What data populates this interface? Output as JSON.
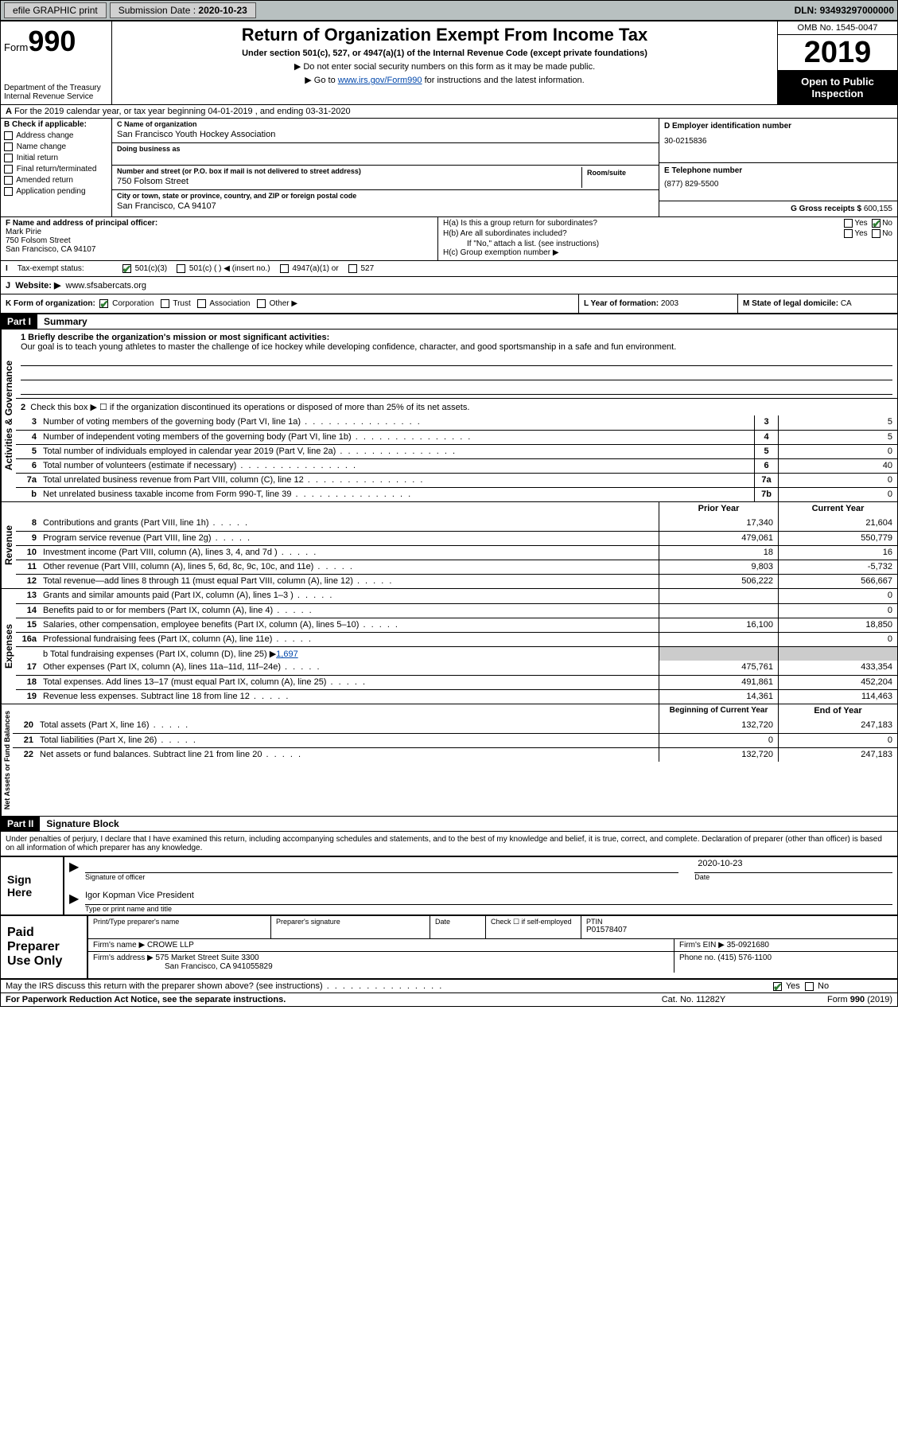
{
  "topbar": {
    "efile_label": "efile GRAPHIC print",
    "submission_label": "Submission Date : ",
    "submission_date": "2020-10-23",
    "dln_label": "DLN: ",
    "dln": "93493297000000"
  },
  "header": {
    "form_label": "Form",
    "form_number": "990",
    "dept1": "Department of the Treasury",
    "dept2": "Internal Revenue Service",
    "title": "Return of Organization Exempt From Income Tax",
    "subtitle": "Under section 501(c), 527, or 4947(a)(1) of the Internal Revenue Code (except private foundations)",
    "note1": "▶ Do not enter social security numbers on this form as it may be made public.",
    "note2_pre": "▶ Go to ",
    "note2_link": "www.irs.gov/Form990",
    "note2_post": " for instructions and the latest information.",
    "omb": "OMB No. 1545-0047",
    "year": "2019",
    "open": "Open to Public Inspection"
  },
  "line_a": "For the 2019 calendar year, or tax year beginning 04-01-2019    , and ending 03-31-2020",
  "section_b": {
    "header": "B Check if applicable:",
    "items": [
      "Address change",
      "Name change",
      "Initial return",
      "Final return/terminated",
      "Amended return",
      "Application pending"
    ]
  },
  "section_c": {
    "name_lbl": "C Name of organization",
    "name": "San Francisco Youth Hockey Association",
    "dba_lbl": "Doing business as",
    "dba": "",
    "addr_lbl": "Number and street (or P.O. box if mail is not delivered to street address)",
    "room_lbl": "Room/suite",
    "addr": "750 Folsom Street",
    "city_lbl": "City or town, state or province, country, and ZIP or foreign postal code",
    "city": "San Francisco, CA  94107"
  },
  "section_d": {
    "lbl": "D Employer identification number",
    "val": "30-0215836"
  },
  "section_e": {
    "lbl": "E Telephone number",
    "val": "(877) 829-5500"
  },
  "section_g": {
    "lbl": "G Gross receipts $ ",
    "val": "600,155"
  },
  "section_f": {
    "lbl": "F Name and address of principal officer:",
    "name": "Mark Pirie",
    "addr1": "750 Folsom Street",
    "addr2": "San Francisco, CA  94107"
  },
  "section_h": {
    "ha": "H(a)  Is this a group return for subordinates?",
    "hb": "H(b)  Are all subordinates included?",
    "hb_note": "If \"No,\" attach a list. (see instructions)",
    "hc": "H(c)  Group exemption number ▶",
    "yes": "Yes",
    "no": "No"
  },
  "tax_status": {
    "lbl": "Tax-exempt status:",
    "opt1": "501(c)(3)",
    "opt2": "501(c) (  ) ◀ (insert no.)",
    "opt3": "4947(a)(1) or",
    "opt4": "527"
  },
  "website": {
    "tag": "J",
    "lbl": "Website: ▶",
    "val": "www.sfsabercats.org"
  },
  "line_k": {
    "k": "K Form of organization:",
    "corp": "Corporation",
    "trust": "Trust",
    "assoc": "Association",
    "other": "Other ▶",
    "l": "L Year of formation: ",
    "l_val": "2003",
    "m": "M State of legal domicile: ",
    "m_val": "CA"
  },
  "parts": {
    "p1": "Part I",
    "p1_title": "Summary",
    "p2": "Part II",
    "p2_title": "Signature Block"
  },
  "summary": {
    "line1_lbl": "1  Briefly describe the organization's mission or most significant activities:",
    "line1_text": "Our goal is to teach young athletes to master the challenge of ice hockey while developing confidence, character, and good sportsmanship in a safe and fun environment.",
    "line2": "Check this box ▶ ☐  if the organization discontinued its operations or disposed of more than 25% of its net assets.",
    "rows_ag": [
      {
        "n": "3",
        "d": "Number of voting members of the governing body (Part VI, line 1a)",
        "box": "3",
        "v": "5"
      },
      {
        "n": "4",
        "d": "Number of independent voting members of the governing body (Part VI, line 1b)",
        "box": "4",
        "v": "5"
      },
      {
        "n": "5",
        "d": "Total number of individuals employed in calendar year 2019 (Part V, line 2a)",
        "box": "5",
        "v": "0"
      },
      {
        "n": "6",
        "d": "Total number of volunteers (estimate if necessary)",
        "box": "6",
        "v": "40"
      },
      {
        "n": "7a",
        "d": "Total unrelated business revenue from Part VIII, column (C), line 12",
        "box": "7a",
        "v": "0"
      },
      {
        "n": "b",
        "d": "Net unrelated business taxable income from Form 990-T, line 39",
        "box": "7b",
        "v": "0"
      }
    ],
    "col_hdr_prior": "Prior Year",
    "col_hdr_curr": "Current Year",
    "rows_rev": [
      {
        "n": "8",
        "d": "Contributions and grants (Part VIII, line 1h)",
        "p": "17,340",
        "c": "21,604"
      },
      {
        "n": "9",
        "d": "Program service revenue (Part VIII, line 2g)",
        "p": "479,061",
        "c": "550,779"
      },
      {
        "n": "10",
        "d": "Investment income (Part VIII, column (A), lines 3, 4, and 7d )",
        "p": "18",
        "c": "16"
      },
      {
        "n": "11",
        "d": "Other revenue (Part VIII, column (A), lines 5, 6d, 8c, 9c, 10c, and 11e)",
        "p": "9,803",
        "c": "-5,732"
      },
      {
        "n": "12",
        "d": "Total revenue—add lines 8 through 11 (must equal Part VIII, column (A), line 12)",
        "p": "506,222",
        "c": "566,667"
      }
    ],
    "rows_exp": [
      {
        "n": "13",
        "d": "Grants and similar amounts paid (Part IX, column (A), lines 1–3 )",
        "p": "",
        "c": "0"
      },
      {
        "n": "14",
        "d": "Benefits paid to or for members (Part IX, column (A), line 4)",
        "p": "",
        "c": "0"
      },
      {
        "n": "15",
        "d": "Salaries, other compensation, employee benefits (Part IX, column (A), lines 5–10)",
        "p": "16,100",
        "c": "18,850"
      },
      {
        "n": "16a",
        "d": "Professional fundraising fees (Part IX, column (A), line 11e)",
        "p": "",
        "c": "0"
      }
    ],
    "line16b": "b  Total fundraising expenses (Part IX, column (D), line 25) ▶",
    "line16b_val": "1,697",
    "rows_exp2": [
      {
        "n": "17",
        "d": "Other expenses (Part IX, column (A), lines 11a–11d, 11f–24e)",
        "p": "475,761",
        "c": "433,354"
      },
      {
        "n": "18",
        "d": "Total expenses. Add lines 13–17 (must equal Part IX, column (A), line 25)",
        "p": "491,861",
        "c": "452,204"
      },
      {
        "n": "19",
        "d": "Revenue less expenses. Subtract line 18 from line 12",
        "p": "14,361",
        "c": "114,463"
      }
    ],
    "col_hdr_beg": "Beginning of Current Year",
    "col_hdr_end": "End of Year",
    "rows_na": [
      {
        "n": "20",
        "d": "Total assets (Part X, line 16)",
        "p": "132,720",
        "c": "247,183"
      },
      {
        "n": "21",
        "d": "Total liabilities (Part X, line 26)",
        "p": "0",
        "c": "0"
      },
      {
        "n": "22",
        "d": "Net assets or fund balances. Subtract line 21 from line 20",
        "p": "132,720",
        "c": "247,183"
      }
    ],
    "vert_ag": "Activities & Governance",
    "vert_rev": "Revenue",
    "vert_exp": "Expenses",
    "vert_na": "Net Assets or Fund Balances"
  },
  "sig": {
    "penalties": "Under penalties of perjury, I declare that I have examined this return, including accompanying schedules and statements, and to the best of my knowledge and belief, it is true, correct, and complete. Declaration of preparer (other than officer) is based on all information of which preparer has any knowledge.",
    "sign_here": "Sign Here",
    "sig_officer": "Signature of officer",
    "date": "Date",
    "date_val": "2020-10-23",
    "name_title": "Igor Kopman  Vice President",
    "name_title_lbl": "Type or print name and title"
  },
  "prep": {
    "title": "Paid Preparer Use Only",
    "col1": "Print/Type preparer's name",
    "col2": "Preparer's signature",
    "col3": "Date",
    "col4_check": "Check ☐ if self-employed",
    "col5_lbl": "PTIN",
    "col5_val": "P01578407",
    "firm_name_lbl": "Firm's name    ▶ ",
    "firm_name": "CROWE LLP",
    "firm_ein_lbl": "Firm's EIN ▶ ",
    "firm_ein": "35-0921680",
    "firm_addr_lbl": "Firm's address ▶ ",
    "firm_addr1": "575 Market Street Suite 3300",
    "firm_addr2": "San Francisco, CA  941055829",
    "phone_lbl": "Phone no. ",
    "phone": "(415) 576-1100"
  },
  "footer": {
    "discuss": "May the IRS discuss this return with the preparer shown above? (see instructions)",
    "yes": "Yes",
    "no": "No",
    "paperwork": "For Paperwork Reduction Act Notice, see the separate instructions.",
    "cat": "Cat. No. 11282Y",
    "form": "Form 990 (2019)"
  }
}
